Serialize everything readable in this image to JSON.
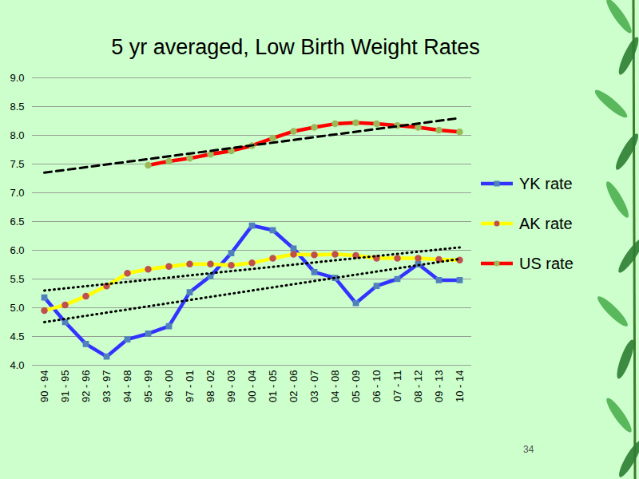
{
  "chart_data": {
    "type": "line",
    "title": "5 yr averaged, Low Birth Weight Rates",
    "categories": [
      "90 - 94",
      "91 - 95",
      "92 - 96",
      "93 - 97",
      "94 - 98",
      "95 - 99",
      "96 - 00",
      "97 - 01",
      "98 - 02",
      "99 - 03",
      "00 - 04",
      "01 - 05",
      "02 - 06",
      "03 - 07",
      "04 - 08",
      "05 - 09",
      "06 - 10",
      "07 - 11",
      "08 - 12",
      "09 - 13",
      "10 - 14"
    ],
    "series": [
      {
        "name": "YK rate",
        "color": "#3333ff",
        "marker": "square",
        "line_style": "solid",
        "values": [
          5.18,
          4.75,
          4.37,
          4.15,
          4.45,
          4.55,
          4.68,
          5.27,
          5.55,
          5.95,
          6.43,
          6.35,
          6.03,
          5.62,
          5.52,
          5.08,
          5.38,
          5.5,
          5.76,
          5.48,
          5.48
        ]
      },
      {
        "name": "AK rate",
        "color": "#ffff00",
        "marker": "circle",
        "line_style": "solid",
        "values": [
          4.95,
          5.05,
          5.2,
          5.38,
          5.6,
          5.67,
          5.72,
          5.76,
          5.76,
          5.74,
          5.78,
          5.86,
          5.93,
          5.92,
          5.93,
          5.91,
          5.86,
          5.86,
          5.86,
          5.84,
          5.83
        ]
      },
      {
        "name": "US rate",
        "color": "#ff0000",
        "marker": "circle",
        "line_style": "solid",
        "values": [
          null,
          null,
          null,
          null,
          null,
          7.48,
          7.55,
          7.6,
          7.67,
          7.73,
          7.82,
          7.95,
          8.07,
          8.14,
          8.2,
          8.22,
          8.2,
          8.17,
          8.14,
          8.09,
          8.06
        ]
      },
      {
        "color": "#000000",
        "marker": "none",
        "line_style": "dashed",
        "values": [
          7.35,
          null,
          null,
          null,
          null,
          null,
          null,
          null,
          null,
          null,
          null,
          null,
          null,
          null,
          null,
          null,
          null,
          null,
          null,
          null,
          8.3
        ]
      },
      {
        "color": "#000000",
        "marker": "none",
        "line_style": "dotted",
        "values": [
          5.3,
          null,
          null,
          null,
          null,
          null,
          null,
          null,
          null,
          null,
          null,
          null,
          null,
          null,
          null,
          null,
          null,
          null,
          null,
          null,
          6.05
        ]
      },
      {
        "color": "#000000",
        "marker": "none",
        "line_style": "dotted",
        "values": [
          4.75,
          null,
          null,
          null,
          null,
          null,
          null,
          null,
          null,
          null,
          null,
          null,
          null,
          null,
          null,
          null,
          null,
          null,
          null,
          null,
          5.85
        ]
      }
    ],
    "ylim": [
      4,
      9
    ],
    "yticks": [
      4,
      4.5,
      5,
      5.5,
      6,
      6.5,
      7,
      7.5,
      8,
      8.5,
      9
    ],
    "grid": true,
    "legend": "right",
    "annotations": [
      "34"
    ]
  }
}
